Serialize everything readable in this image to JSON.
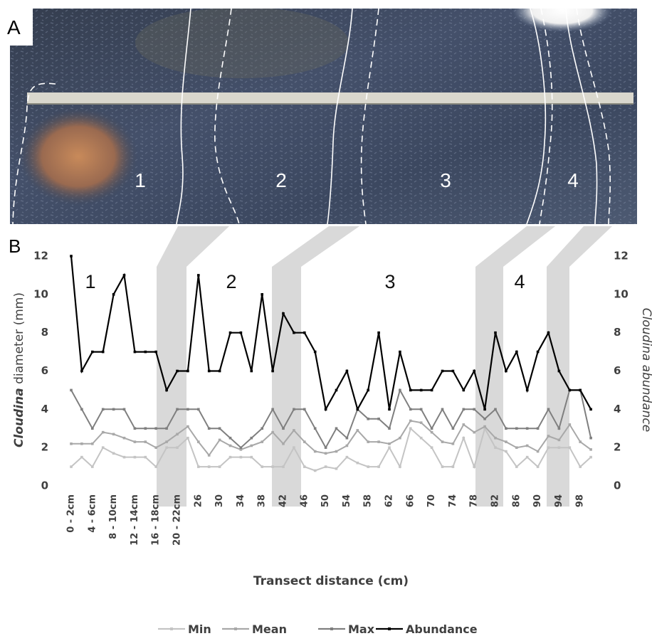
{
  "panel_a": {
    "label": "A",
    "zone_labels": [
      "1",
      "2",
      "3",
      "4"
    ]
  },
  "chart_data": {
    "type": "line",
    "panel_label": "B",
    "zone_labels": [
      "1",
      "2",
      "3",
      "4"
    ],
    "x_label": "Transect distance (cm)",
    "y_label": [
      "Cloudina",
      "diameter (mm)"
    ],
    "y2_label": "Cloudina abundance",
    "categories": [
      "0 - 2cm",
      null,
      "4 - 6cm",
      null,
      "8 - 10cm",
      null,
      "12 - 14cm",
      null,
      "16 - 18cm",
      null,
      "20 - 22cm",
      null,
      "26",
      null,
      "30",
      null,
      "34",
      null,
      "38",
      null,
      "42",
      null,
      "46",
      null,
      "50",
      null,
      "54",
      null,
      "58",
      null,
      "62",
      null,
      "66",
      null,
      "70",
      null,
      "74",
      null,
      "78",
      null,
      "82",
      null,
      "86",
      null,
      "90",
      null,
      "94",
      null,
      "98",
      null
    ],
    "series": [
      {
        "name": "Min",
        "color": "#c4c4c4",
        "values": [
          1,
          1.5,
          1,
          2,
          1.7,
          1.5,
          1.5,
          1.5,
          1,
          2,
          2,
          2.5,
          1,
          1,
          1,
          1.5,
          1.5,
          1.5,
          1,
          1,
          1,
          2,
          1,
          0.8,
          1,
          0.9,
          1.5,
          1.2,
          1,
          1,
          2,
          1,
          3,
          2.5,
          2,
          1,
          1,
          2.5,
          1,
          3,
          2,
          1.8,
          1,
          1.5,
          1,
          2,
          2,
          2,
          1,
          1.5
        ]
      },
      {
        "name": "Mean",
        "color": "#a8a8a8",
        "values": [
          2.2,
          2.2,
          2.2,
          2.8,
          2.7,
          2.5,
          2.3,
          2.3,
          2,
          2.3,
          2.7,
          3.1,
          2.3,
          1.6,
          2.4,
          2.1,
          1.9,
          2.1,
          2.3,
          2.8,
          2.2,
          2.9,
          2.3,
          1.8,
          1.7,
          1.8,
          2.1,
          2.9,
          2.3,
          2.3,
          2.2,
          2.5,
          3.4,
          3.3,
          2.8,
          2.3,
          2.2,
          3.2,
          2.8,
          3.1,
          2.5,
          2.3,
          2,
          2.1,
          1.8,
          2.6,
          2.4,
          3.2,
          2.3,
          1.9
        ]
      },
      {
        "name": "Max",
        "color": "#7f7f7f",
        "values": [
          5,
          4,
          3,
          4,
          4,
          4,
          3,
          3,
          3,
          3,
          4,
          4,
          4,
          3,
          3,
          2.5,
          2,
          2.5,
          3,
          4,
          3,
          4,
          4,
          3,
          2,
          3,
          2.5,
          4,
          3.5,
          3.5,
          3,
          5,
          4,
          4,
          3,
          4,
          3,
          4,
          4,
          3.5,
          4,
          3,
          3,
          3,
          3,
          4,
          3,
          5,
          5,
          2.5
        ]
      },
      {
        "name": "Abundance",
        "color": "#000000",
        "axis": "y2",
        "values": [
          12,
          6,
          7,
          7,
          10,
          11,
          7,
          7,
          7,
          5,
          6,
          6,
          11,
          6,
          6,
          8,
          8,
          6,
          10,
          6,
          9,
          8,
          8,
          7,
          4,
          5,
          6,
          4,
          5,
          8,
          4,
          7,
          5,
          5,
          5,
          6,
          6,
          5,
          6,
          4,
          8,
          6,
          7,
          5,
          7,
          8,
          6,
          5,
          5,
          4
        ]
      }
    ],
    "ylim": [
      0,
      12
    ],
    "yticks": [
      0,
      2,
      4,
      6,
      8,
      10,
      12
    ],
    "y2lim": [
      0,
      12
    ],
    "y2ticks": [
      0,
      2,
      4,
      6,
      8,
      10,
      12
    ]
  }
}
